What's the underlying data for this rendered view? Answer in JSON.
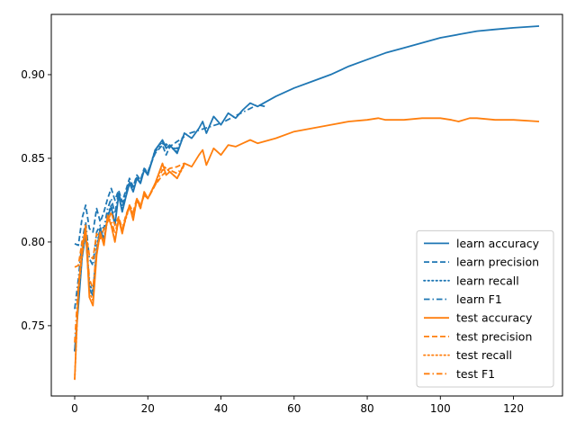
{
  "chart_data": {
    "type": "line",
    "title": "",
    "xlabel": "",
    "ylabel": "",
    "xlim": [
      -6.4,
      133.4
    ],
    "ylim": [
      0.708,
      0.936
    ],
    "xticks": [
      0,
      20,
      40,
      60,
      80,
      100,
      120
    ],
    "xtick_labels": [
      "0",
      "20",
      "40",
      "60",
      "80",
      "100",
      "120"
    ],
    "yticks": [
      0.75,
      0.8,
      0.85,
      0.9
    ],
    "ytick_labels": [
      "0.75",
      "0.80",
      "0.85",
      "0.90"
    ],
    "grid": false,
    "legend_position": "lower right",
    "colors": {
      "learn": "#1f77b4",
      "test": "#ff7f0e"
    },
    "series": [
      {
        "name": "learn accuracy",
        "group": "learn",
        "style": "solid",
        "x": [
          0,
          1,
          2,
          3,
          4,
          5,
          6,
          7,
          8,
          9,
          10,
          11,
          12,
          13,
          14,
          15,
          16,
          17,
          18,
          19,
          20,
          22,
          24,
          25,
          26,
          28,
          30,
          32,
          34,
          35,
          36,
          38,
          40,
          42,
          44,
          46,
          48,
          50,
          55,
          60,
          65,
          70,
          75,
          80,
          85,
          90,
          95,
          100,
          105,
          110,
          115,
          120,
          127
        ],
        "y": [
          0.735,
          0.762,
          0.79,
          0.805,
          0.772,
          0.768,
          0.795,
          0.808,
          0.8,
          0.815,
          0.821,
          0.81,
          0.828,
          0.818,
          0.827,
          0.835,
          0.83,
          0.838,
          0.835,
          0.843,
          0.84,
          0.855,
          0.861,
          0.856,
          0.858,
          0.853,
          0.865,
          0.862,
          0.868,
          0.872,
          0.865,
          0.875,
          0.87,
          0.877,
          0.874,
          0.879,
          0.883,
          0.881,
          0.887,
          0.892,
          0.896,
          0.9,
          0.905,
          0.909,
          0.913,
          0.916,
          0.919,
          0.922,
          0.924,
          0.926,
          0.927,
          0.928,
          0.929
        ]
      },
      {
        "name": "learn precision",
        "group": "learn",
        "style": "dashed",
        "x": [
          0,
          1,
          2,
          3,
          4,
          5,
          6,
          7,
          8,
          9,
          10,
          11,
          12,
          13,
          14,
          15,
          16,
          17,
          18,
          19,
          20,
          22,
          24,
          25,
          26,
          28,
          30
        ],
        "y": [
          0.799,
          0.798,
          0.814,
          0.822,
          0.808,
          0.806,
          0.82,
          0.812,
          0.818,
          0.826,
          0.832,
          0.825,
          0.831,
          0.824,
          0.831,
          0.838,
          0.833,
          0.84,
          0.837,
          0.844,
          0.842,
          0.853,
          0.858,
          0.852,
          0.857,
          0.86,
          0.863
        ]
      },
      {
        "name": "learn recall",
        "group": "learn",
        "style": "dotted",
        "x": [
          0,
          1,
          2,
          3,
          4,
          5,
          6,
          7,
          8,
          9,
          10,
          11,
          12,
          13,
          14,
          15,
          16,
          17,
          18,
          19,
          20,
          22,
          24,
          26,
          28,
          30
        ],
        "y": [
          0.735,
          0.764,
          0.792,
          0.806,
          0.775,
          0.77,
          0.797,
          0.809,
          0.802,
          0.816,
          0.822,
          0.811,
          0.829,
          0.819,
          0.828,
          0.836,
          0.831,
          0.839,
          0.836,
          0.844,
          0.841,
          0.855,
          0.86,
          0.857,
          0.854,
          0.865
        ]
      },
      {
        "name": "learn F1",
        "group": "learn",
        "style": "dashdot",
        "x": [
          0,
          1,
          2,
          3,
          4,
          5,
          6,
          7,
          8,
          9,
          10,
          11,
          12,
          13,
          14,
          15,
          16,
          17,
          18,
          19,
          20,
          22,
          24,
          26,
          28,
          30,
          40,
          50,
          52
        ],
        "y": [
          0.76,
          0.778,
          0.8,
          0.812,
          0.79,
          0.786,
          0.806,
          0.81,
          0.808,
          0.82,
          0.826,
          0.817,
          0.83,
          0.821,
          0.829,
          0.836,
          0.832,
          0.839,
          0.836,
          0.843,
          0.841,
          0.854,
          0.859,
          0.856,
          0.856,
          0.864,
          0.871,
          0.882,
          0.881
        ]
      },
      {
        "name": "test accuracy",
        "group": "test",
        "style": "solid",
        "x": [
          0,
          1,
          2,
          3,
          4,
          5,
          6,
          7,
          8,
          9,
          10,
          11,
          12,
          13,
          14,
          15,
          16,
          17,
          18,
          19,
          20,
          22,
          24,
          25,
          26,
          28,
          30,
          32,
          34,
          35,
          36,
          38,
          40,
          42,
          44,
          46,
          48,
          50,
          55,
          60,
          65,
          70,
          75,
          80,
          83,
          85,
          90,
          95,
          100,
          103,
          105,
          108,
          110,
          115,
          120,
          127
        ],
        "y": [
          0.718,
          0.772,
          0.795,
          0.81,
          0.767,
          0.762,
          0.792,
          0.806,
          0.798,
          0.816,
          0.81,
          0.8,
          0.814,
          0.805,
          0.815,
          0.822,
          0.813,
          0.826,
          0.82,
          0.83,
          0.826,
          0.835,
          0.847,
          0.84,
          0.842,
          0.838,
          0.847,
          0.845,
          0.852,
          0.855,
          0.846,
          0.856,
          0.852,
          0.858,
          0.857,
          0.859,
          0.861,
          0.859,
          0.862,
          0.866,
          0.868,
          0.87,
          0.872,
          0.873,
          0.874,
          0.873,
          0.873,
          0.874,
          0.874,
          0.873,
          0.872,
          0.874,
          0.874,
          0.873,
          0.873,
          0.872
        ]
      },
      {
        "name": "test precision",
        "group": "test",
        "style": "dashed",
        "x": [
          0,
          1,
          2,
          3,
          4,
          5,
          6,
          7,
          8,
          9,
          10,
          11,
          12,
          13,
          14,
          15,
          16,
          17,
          18,
          19,
          20,
          22,
          24,
          26,
          28,
          30
        ],
        "y": [
          0.785,
          0.786,
          0.8,
          0.806,
          0.792,
          0.79,
          0.805,
          0.802,
          0.808,
          0.812,
          0.818,
          0.81,
          0.815,
          0.808,
          0.816,
          0.822,
          0.818,
          0.826,
          0.822,
          0.828,
          0.826,
          0.834,
          0.84,
          0.844,
          0.845,
          0.847
        ]
      },
      {
        "name": "test recall",
        "group": "test",
        "style": "dotted",
        "x": [
          0,
          1,
          2,
          3,
          4,
          5,
          6,
          7,
          8,
          9,
          10,
          11,
          12,
          13,
          14,
          15,
          16,
          17,
          18,
          19,
          20,
          22,
          24,
          26,
          28,
          30
        ],
        "y": [
          0.718,
          0.77,
          0.792,
          0.808,
          0.77,
          0.765,
          0.793,
          0.805,
          0.799,
          0.815,
          0.81,
          0.801,
          0.813,
          0.806,
          0.814,
          0.821,
          0.814,
          0.825,
          0.82,
          0.829,
          0.826,
          0.835,
          0.846,
          0.842,
          0.838,
          0.846
        ]
      },
      {
        "name": "test F1",
        "group": "test",
        "style": "dashdot",
        "x": [
          0,
          1,
          2,
          3,
          4,
          5,
          6,
          7,
          8,
          9,
          10,
          11,
          12,
          13,
          14,
          15,
          16,
          17,
          18,
          19,
          20,
          22,
          24,
          26,
          28,
          30
        ],
        "y": [
          0.74,
          0.775,
          0.793,
          0.807,
          0.778,
          0.772,
          0.796,
          0.804,
          0.801,
          0.814,
          0.813,
          0.805,
          0.814,
          0.807,
          0.815,
          0.821,
          0.816,
          0.825,
          0.821,
          0.828,
          0.826,
          0.834,
          0.843,
          0.843,
          0.841,
          0.846
        ]
      }
    ]
  }
}
